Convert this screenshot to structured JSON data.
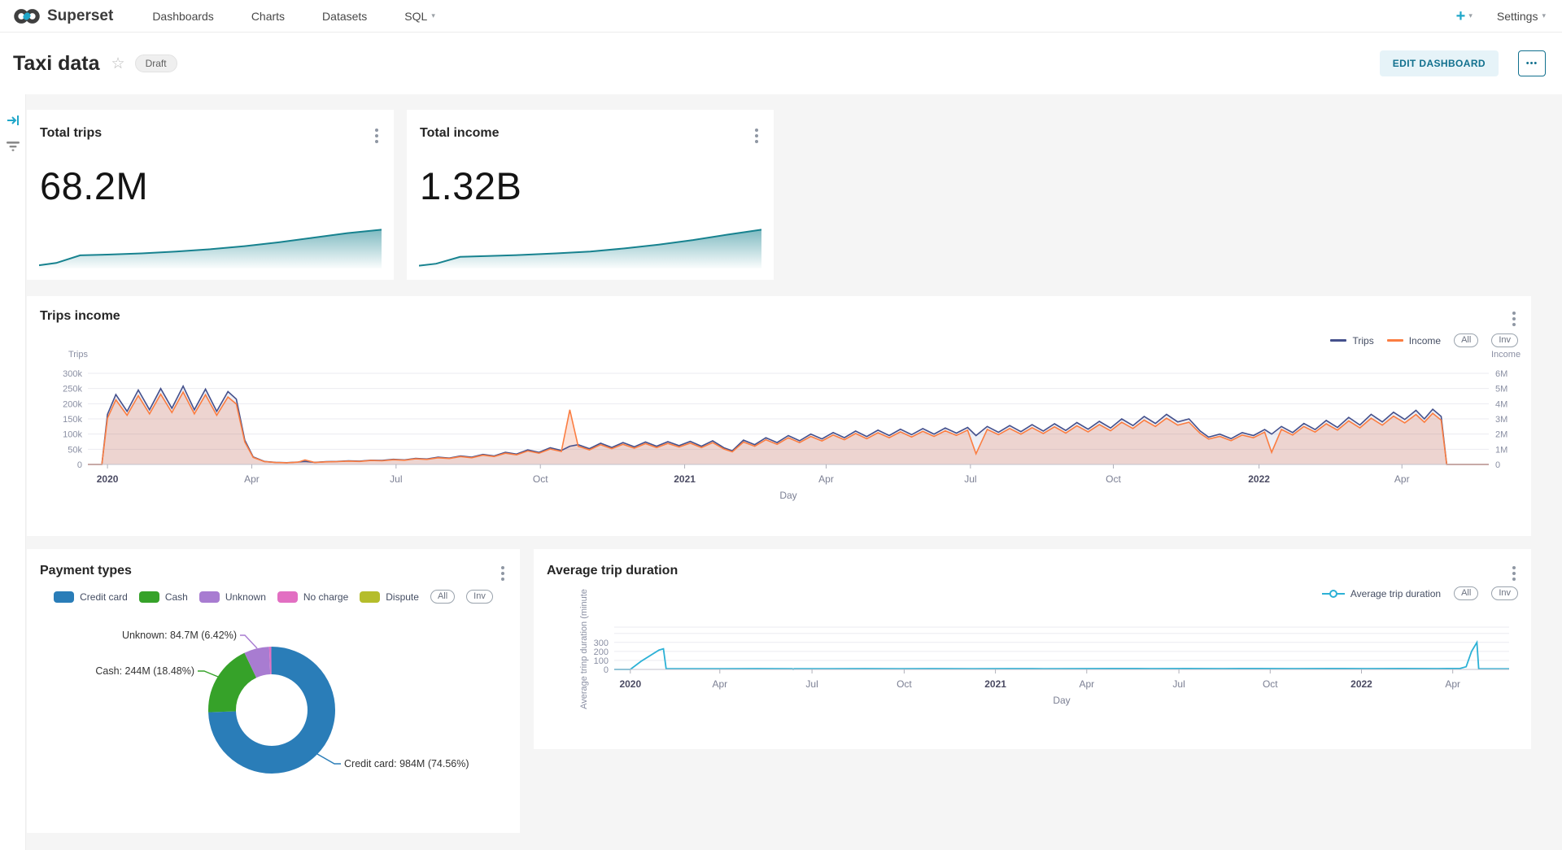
{
  "nav": {
    "brand": "Superset",
    "items": [
      "Dashboards",
      "Charts",
      "Datasets",
      "SQL"
    ],
    "plus": "+",
    "settings": "Settings"
  },
  "titlebar": {
    "title": "Taxi data",
    "badge": "Draft",
    "edit_button": "EDIT DASHBOARD",
    "more": "•••"
  },
  "colors": {
    "accent": "#20a7c9",
    "spark": "#17828f",
    "trips_line": "#44508c",
    "income_line": "#fb7d41",
    "duration_line": "#2cb1d6",
    "grid": "#ebebf1",
    "axis": "#c2c2cc",
    "tick_text": "#8a8fa3",
    "x_month": "#7b7f93",
    "x_year": "#4b4b63"
  },
  "chart_data": [
    {
      "id": "total-trips-spark",
      "type": "area",
      "title": "Total trips",
      "value": "68.2M",
      "points": [
        [
          0,
          0.04
        ],
        [
          0.05,
          0.1
        ],
        [
          0.12,
          0.3
        ],
        [
          0.2,
          0.32
        ],
        [
          0.3,
          0.35
        ],
        [
          0.4,
          0.4
        ],
        [
          0.5,
          0.46
        ],
        [
          0.6,
          0.54
        ],
        [
          0.7,
          0.64
        ],
        [
          0.8,
          0.76
        ],
        [
          0.9,
          0.88
        ],
        [
          1,
          0.97
        ]
      ]
    },
    {
      "id": "total-income-spark",
      "type": "area",
      "title": "Total income",
      "value": "1.32B",
      "points": [
        [
          0,
          0.03
        ],
        [
          0.05,
          0.08
        ],
        [
          0.12,
          0.26
        ],
        [
          0.2,
          0.28
        ],
        [
          0.3,
          0.31
        ],
        [
          0.4,
          0.35
        ],
        [
          0.5,
          0.4
        ],
        [
          0.6,
          0.48
        ],
        [
          0.7,
          0.58
        ],
        [
          0.8,
          0.7
        ],
        [
          0.9,
          0.84
        ],
        [
          1,
          0.97
        ]
      ]
    },
    {
      "id": "trips-income",
      "type": "line",
      "title": "Trips income",
      "xlabel": "Day",
      "legend_pills": [
        "All",
        "Inv"
      ],
      "y_left": {
        "label": "Trips",
        "ticks": [
          "300k",
          "250k",
          "200k",
          "150k",
          "100k",
          "50k",
          "0"
        ],
        "max": 300
      },
      "y_right": {
        "label": "Income",
        "ticks": [
          "6M",
          "5M",
          "4M",
          "3M",
          "2M",
          "1M",
          "0"
        ],
        "max": 6
      },
      "x_ticks": [
        [
          0.014,
          "2020",
          1
        ],
        [
          0.117,
          "Apr",
          0
        ],
        [
          0.22,
          "Jul",
          0
        ],
        [
          0.323,
          "Oct",
          0
        ],
        [
          0.426,
          "2021",
          1
        ],
        [
          0.527,
          "Apr",
          0
        ],
        [
          0.63,
          "Jul",
          0
        ],
        [
          0.732,
          "Oct",
          0
        ],
        [
          0.836,
          "2022",
          1
        ],
        [
          0.938,
          "Apr",
          0
        ]
      ],
      "x": [
        0,
        0.01,
        0.014,
        0.02,
        0.028,
        0.036,
        0.044,
        0.052,
        0.06,
        0.068,
        0.076,
        0.084,
        0.092,
        0.1,
        0.106,
        0.112,
        0.118,
        0.126,
        0.134,
        0.142,
        0.15,
        0.155,
        0.162,
        0.17,
        0.178,
        0.186,
        0.194,
        0.202,
        0.21,
        0.218,
        0.226,
        0.234,
        0.242,
        0.25,
        0.258,
        0.266,
        0.274,
        0.282,
        0.29,
        0.298,
        0.306,
        0.314,
        0.322,
        0.33,
        0.338,
        0.344,
        0.35,
        0.358,
        0.366,
        0.374,
        0.382,
        0.39,
        0.398,
        0.406,
        0.414,
        0.422,
        0.43,
        0.438,
        0.446,
        0.454,
        0.46,
        0.468,
        0.476,
        0.484,
        0.492,
        0.5,
        0.508,
        0.516,
        0.524,
        0.532,
        0.54,
        0.548,
        0.556,
        0.564,
        0.572,
        0.58,
        0.588,
        0.596,
        0.604,
        0.612,
        0.62,
        0.628,
        0.634,
        0.642,
        0.65,
        0.658,
        0.666,
        0.674,
        0.682,
        0.69,
        0.698,
        0.706,
        0.714,
        0.722,
        0.73,
        0.738,
        0.746,
        0.754,
        0.762,
        0.77,
        0.778,
        0.786,
        0.794,
        0.8,
        0.808,
        0.816,
        0.824,
        0.832,
        0.84,
        0.845,
        0.852,
        0.86,
        0.868,
        0.876,
        0.884,
        0.892,
        0.9,
        0.908,
        0.916,
        0.924,
        0.932,
        0.94,
        0.948,
        0.954,
        0.96,
        0.966,
        0.97,
        1
      ],
      "series": [
        {
          "name": "Trips",
          "axis": "left",
          "values": [
            0,
            0,
            165,
            230,
            175,
            245,
            180,
            250,
            185,
            258,
            180,
            248,
            175,
            240,
            215,
            80,
            25,
            10,
            7,
            6,
            8,
            10,
            7,
            9,
            10,
            12,
            11,
            14,
            13,
            17,
            15,
            20,
            18,
            24,
            21,
            28,
            24,
            33,
            28,
            40,
            34,
            48,
            40,
            55,
            46,
            60,
            65,
            52,
            70,
            56,
            72,
            58,
            74,
            60,
            75,
            62,
            76,
            60,
            78,
            55,
            45,
            80,
            65,
            88,
            72,
            95,
            78,
            100,
            84,
            105,
            88,
            110,
            92,
            113,
            95,
            116,
            98,
            118,
            100,
            120,
            103,
            122,
            95,
            125,
            106,
            128,
            108,
            131,
            110,
            134,
            112,
            138,
            116,
            142,
            120,
            150,
            128,
            158,
            135,
            165,
            140,
            150,
            110,
            90,
            100,
            85,
            105,
            95,
            115,
            100,
            125,
            105,
            135,
            115,
            145,
            122,
            155,
            130,
            165,
            140,
            172,
            148,
            178,
            150,
            182,
            158,
            0,
            0
          ]
        },
        {
          "name": "Income",
          "axis": "right",
          "values": [
            0,
            0,
            3.05,
            4.26,
            3.24,
            4.53,
            3.33,
            4.63,
            3.42,
            4.77,
            3.33,
            4.59,
            3.24,
            4.44,
            3.98,
            1.48,
            0.46,
            0.19,
            0.13,
            0.11,
            0.15,
            0.3,
            0.13,
            0.17,
            0.19,
            0.22,
            0.2,
            0.26,
            0.24,
            0.31,
            0.28,
            0.37,
            0.33,
            0.44,
            0.39,
            0.52,
            0.44,
            0.61,
            0.52,
            0.74,
            0.63,
            0.89,
            0.74,
            1.02,
            0.85,
            3.6,
            1.2,
            0.96,
            1.3,
            1.04,
            1.33,
            1.07,
            1.37,
            1.11,
            1.39,
            1.15,
            1.41,
            1.11,
            1.44,
            1.02,
            0.83,
            1.48,
            1.2,
            1.63,
            1.33,
            1.76,
            1.44,
            1.85,
            1.55,
            1.94,
            1.63,
            2.04,
            1.7,
            2.09,
            1.76,
            2.15,
            1.81,
            2.18,
            1.85,
            2.22,
            1.91,
            2.26,
            0.7,
            2.31,
            1.96,
            2.37,
            2,
            2.42,
            2.04,
            2.48,
            2.07,
            2.55,
            2.15,
            2.63,
            2.22,
            2.78,
            2.37,
            2.92,
            2.5,
            3.05,
            2.59,
            2.78,
            2.04,
            1.67,
            1.85,
            1.57,
            1.94,
            1.76,
            2.13,
            0.8,
            2.31,
            1.94,
            2.5,
            2.13,
            2.68,
            2.26,
            2.87,
            2.41,
            3.05,
            2.59,
            3.18,
            2.74,
            3.29,
            2.78,
            3.37,
            2.92,
            0,
            0
          ]
        }
      ]
    },
    {
      "id": "payment-types",
      "type": "pie",
      "title": "Payment types",
      "legend_pills": [
        "All",
        "Inv"
      ],
      "slices": [
        {
          "label": "Credit card",
          "pct": 74.56,
          "color": "#2a7db8"
        },
        {
          "label": "Cash",
          "pct": 18.48,
          "color": "#36a229"
        },
        {
          "label": "Unknown",
          "pct": 6.42,
          "color": "#a87cd1"
        },
        {
          "label": "No charge",
          "pct": 0.54,
          "color": "#e26fc2"
        },
        {
          "label": "Dispute",
          "pct": 0,
          "color": "#b5bd2b"
        }
      ],
      "callouts": [
        {
          "slice": "Unknown",
          "text": "Unknown: 84.7M (6.42%)"
        },
        {
          "slice": "Cash",
          "text": "Cash: 244M (18.48%)"
        },
        {
          "slice": "Credit card",
          "text": "Credit card: 984M (74.56%)"
        }
      ]
    },
    {
      "id": "avg-duration",
      "type": "line",
      "title": "Average trip duration",
      "legend": "Average trip duration",
      "legend_pills": [
        "All",
        "Inv"
      ],
      "ylabel": "Average trinp duration (minute",
      "y_ticks": [
        "300",
        "200",
        "100",
        "0"
      ],
      "grid_values": [
        0,
        100,
        200,
        300,
        400
      ],
      "ymax": 470,
      "xlabel": "Day",
      "x_ticks": [
        [
          0.018,
          "2020",
          1
        ],
        [
          0.118,
          "Apr",
          0
        ],
        [
          0.221,
          "Jul",
          0
        ],
        [
          0.324,
          "Oct",
          0
        ],
        [
          0.426,
          "2021",
          1
        ],
        [
          0.528,
          "Apr",
          0
        ],
        [
          0.631,
          "Jul",
          0
        ],
        [
          0.733,
          "Oct",
          0
        ],
        [
          0.835,
          "2022",
          1
        ],
        [
          0.937,
          "Apr",
          0
        ]
      ],
      "x": [
        0,
        0.018,
        0.03,
        0.05,
        0.055,
        0.058,
        0.08,
        0.12,
        0.16,
        0.199,
        0.2,
        0.201,
        0.24,
        0.28,
        0.32,
        0.36,
        0.4,
        0.44,
        0.48,
        0.52,
        0.56,
        0.6,
        0.64,
        0.68,
        0.72,
        0.76,
        0.8,
        0.84,
        0.88,
        0.92,
        0.945,
        0.952,
        0.958,
        0.964,
        0.966,
        0.97,
        1
      ],
      "values": [
        0,
        0,
        90,
        215,
        230,
        8,
        7,
        8,
        9,
        8,
        0,
        8,
        8,
        9,
        8,
        9,
        8,
        9,
        8,
        9,
        10,
        9,
        10,
        9,
        10,
        9,
        10,
        9,
        10,
        9,
        10,
        30,
        200,
        300,
        8,
        6,
        6
      ]
    }
  ]
}
